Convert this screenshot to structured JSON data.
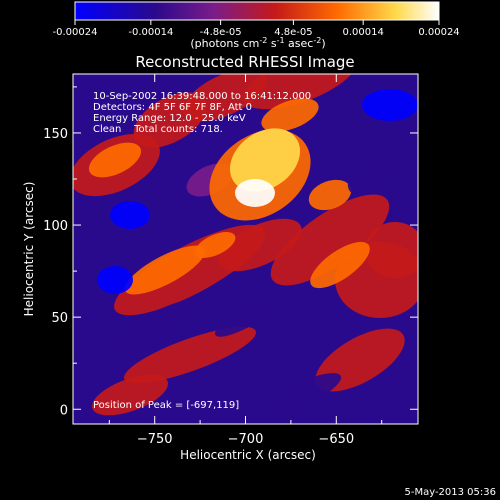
{
  "colorbar": {
    "tick_labels": [
      "-0.00024",
      "-0.00014",
      "-4.8e-05",
      "4.8e-05",
      "0.00014",
      "0.00024"
    ],
    "tick_values": [
      -0.00024,
      -0.00014,
      -4.8e-05,
      4.8e-05,
      0.00014,
      0.00024
    ],
    "range": [
      -0.00024,
      0.00024
    ],
    "units": {
      "prefix": "(photons cm",
      "sup1": "-2",
      "mid1": " s",
      "sup2": "-1",
      "mid2": " asec",
      "sup3": "-2",
      "suffix": ")"
    },
    "colors": [
      "#0000ff",
      "#2a0a8c",
      "#7a1c8a",
      "#c41a1a",
      "#ff6a00",
      "#ffd84a",
      "#ffffff"
    ]
  },
  "chart_data": {
    "type": "heatmap",
    "title": "Reconstructed RHESSI Image",
    "xlabel": "Heliocentric X (arcsec)",
    "ylabel": "Heliocentric Y (arcsec)",
    "xlim": [
      -795,
      -605
    ],
    "ylim": [
      -8,
      182
    ],
    "x_ticks": [
      -750,
      -700,
      -650
    ],
    "x_tick_labels": [
      "−750",
      "−700",
      "−650"
    ],
    "y_ticks": [
      0,
      50,
      100,
      150
    ],
    "y_tick_labels": [
      "0",
      "50",
      "100",
      "150"
    ],
    "peak": [
      -697,
      119
    ],
    "annotations": [
      "10-Sep-2002 16:39:48.000 to 16:41:12.000",
      "Detectors: 4F 5F 6F 7F 8F, Att 0",
      "Energy Range: 12.0 - 25.0 keV",
      "Clean    Total counts: 718.",
      "Position of Peak = [-697,119]"
    ]
  },
  "footer": {
    "date": "5-May-2013 05:36"
  }
}
